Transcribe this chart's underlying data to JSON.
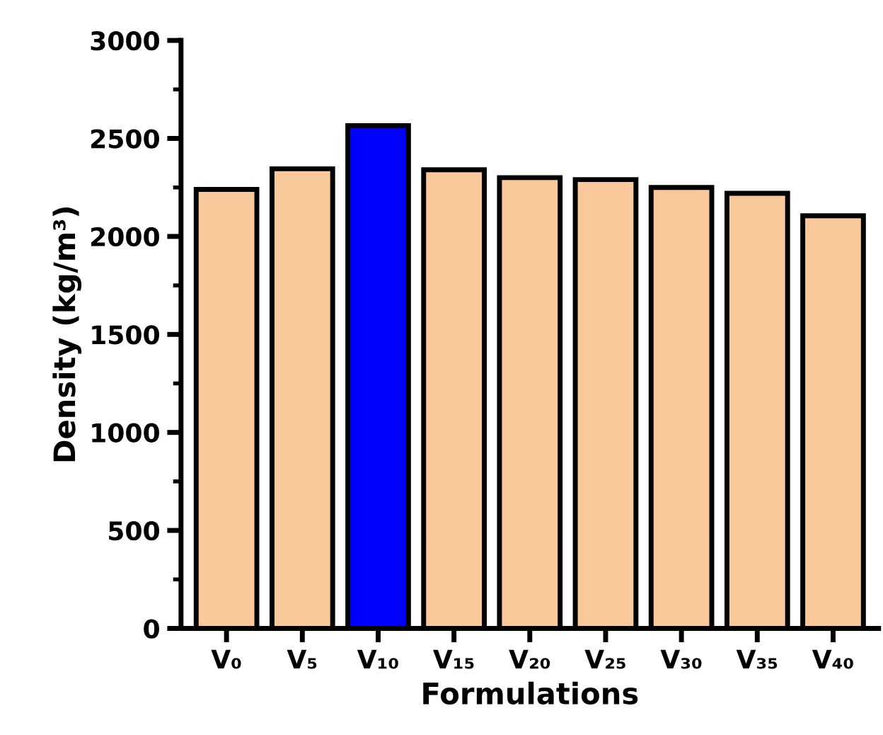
{
  "chart_data": {
    "type": "bar",
    "xlabel": "Formulations",
    "ylabel": "Density (kg/m³)",
    "categories": [
      "V₀",
      "V₅",
      "V₁₀",
      "V₁₅",
      "V₂₀",
      "V₂₅",
      "V₃₀",
      "V₃₅",
      "V₄₀"
    ],
    "values": [
      2240,
      2345,
      2565,
      2340,
      2300,
      2290,
      2250,
      2220,
      2105
    ],
    "colors": [
      "#f9c89b",
      "#f9c89b",
      "#0000ff",
      "#f9c89b",
      "#f9c89b",
      "#f9c89b",
      "#f9c89b",
      "#f9c89b",
      "#f9c89b"
    ],
    "ylim": [
      0,
      3000
    ],
    "yticks": [
      0,
      500,
      1000,
      1500,
      2000,
      2500,
      3000
    ],
    "grid": false,
    "legend": false
  }
}
